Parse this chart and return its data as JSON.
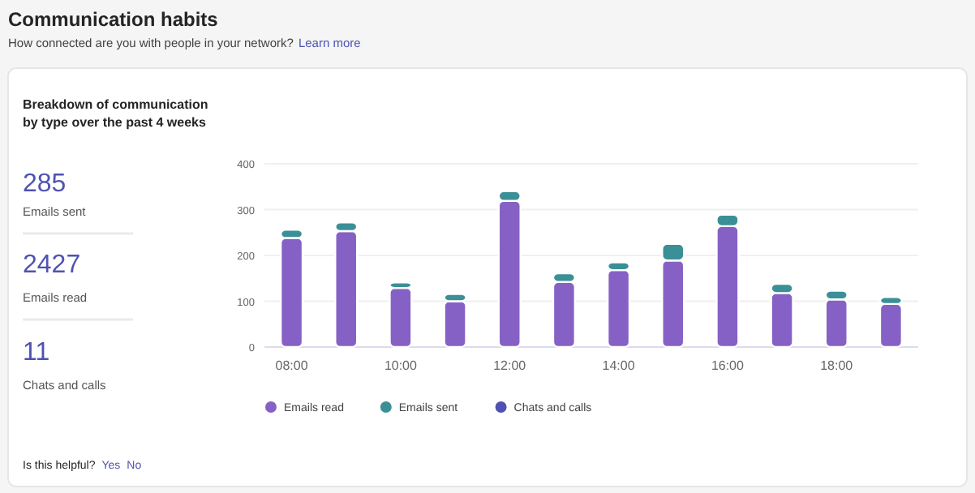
{
  "chart_data": {
    "type": "bar",
    "title": "Communication habits",
    "subtitle": "How connected are you with people in your network?",
    "annotations": [
      "Learn more",
      "Breakdown of communication by type over the past 4 weeks",
      "285",
      "Emails sent",
      "2427",
      "Emails read",
      "11",
      "Chats and calls",
      "Is this helpful?",
      "Yes",
      "No"
    ],
    "categories": [
      "08:00",
      null,
      "10:00",
      null,
      "12:00",
      null,
      "14:00",
      null,
      "16:00",
      null,
      "18:00",
      null
    ],
    "stacked": true,
    "series": [
      {
        "name": "Emails read",
        "color": "#8661c5",
        "values": [
          238,
          253,
          129,
          100,
          319,
          142,
          168,
          189,
          264,
          118,
          104,
          94
        ]
      },
      {
        "name": "Emails sent",
        "color": "#3a9096",
        "values": [
          18,
          19,
          12,
          16,
          21,
          19,
          17,
          36,
          25,
          20,
          19,
          15
        ]
      },
      {
        "name": "Chats and calls",
        "color": "#4f52b2",
        "values": [
          null,
          null,
          null,
          null,
          null,
          null,
          null,
          null,
          null,
          null,
          null,
          null
        ]
      }
    ],
    "ylim": [
      0,
      400
    ],
    "yticks": [
      0,
      100,
      200,
      300,
      400
    ],
    "grid": "y",
    "legend": "bottom left"
  }
}
